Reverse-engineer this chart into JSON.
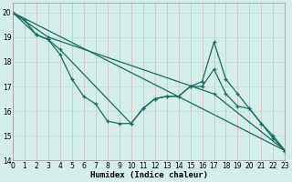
{
  "title": "",
  "xlabel": "Humidex (Indice chaleur)",
  "ylabel": "",
  "bg_color": "#d4eeea",
  "grid_color": "#b8d8d4",
  "line_color": "#1a6b60",
  "series": [
    {
      "x": [
        0,
        1,
        2,
        3,
        4,
        5,
        6,
        7,
        8,
        9,
        10,
        11,
        12,
        13,
        14,
        15,
        16,
        17,
        18,
        19,
        20,
        21,
        22,
        23
      ],
      "y": [
        20.0,
        19.7,
        19.1,
        18.9,
        18.3,
        17.3,
        16.6,
        16.3,
        15.6,
        15.5,
        15.5,
        16.1,
        16.5,
        16.6,
        16.6,
        17.0,
        17.0,
        17.7,
        16.7,
        16.2,
        16.1,
        15.5,
        14.9,
        14.4
      ]
    },
    {
      "x": [
        0,
        2,
        3,
        4,
        10,
        11,
        12,
        13,
        14,
        15,
        16,
        17,
        18,
        19,
        20,
        21,
        22,
        23
      ],
      "y": [
        20.0,
        19.1,
        18.9,
        18.5,
        15.5,
        16.1,
        16.5,
        16.6,
        16.6,
        17.0,
        17.2,
        18.8,
        17.3,
        16.7,
        16.1,
        15.5,
        15.0,
        14.4
      ]
    },
    {
      "x": [
        0,
        23
      ],
      "y": [
        20.0,
        14.4
      ]
    },
    {
      "x": [
        0,
        3,
        17,
        23
      ],
      "y": [
        20.0,
        19.0,
        16.7,
        14.4
      ]
    }
  ],
  "xlim": [
    0,
    23
  ],
  "ylim": [
    14,
    20.4
  ],
  "yticks": [
    14,
    15,
    16,
    17,
    18,
    19,
    20
  ],
  "xtick_labels": [
    "0",
    "1",
    "2",
    "3",
    "4",
    "5",
    "6",
    "7",
    "8",
    "9",
    "10",
    "11",
    "12",
    "13",
    "14",
    "15",
    "16",
    "17",
    "18",
    "19",
    "20",
    "21",
    "22",
    "23"
  ],
  "xticks": [
    0,
    1,
    2,
    3,
    4,
    5,
    6,
    7,
    8,
    9,
    10,
    11,
    12,
    13,
    14,
    15,
    16,
    17,
    18,
    19,
    20,
    21,
    22,
    23
  ]
}
